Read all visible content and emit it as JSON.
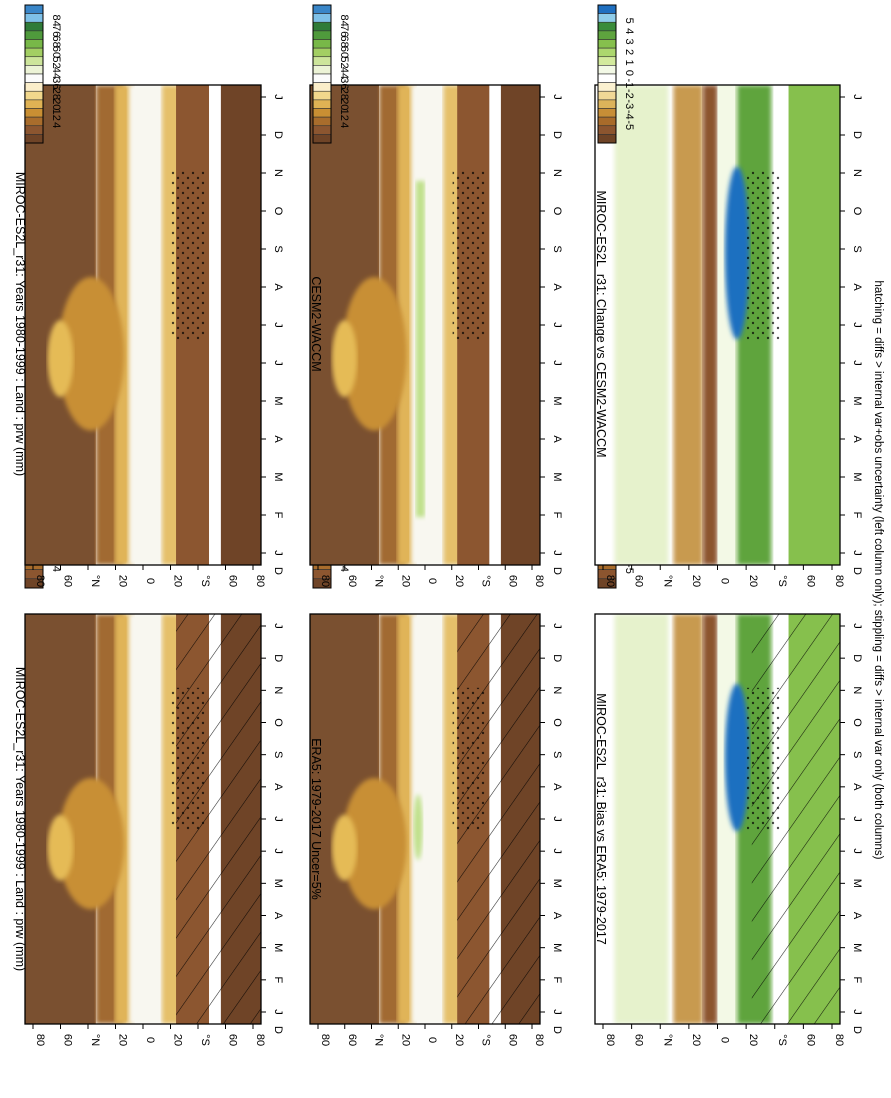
{
  "figure": {
    "footnote": "hatching = diffs > internal var+obs uncertainty (left column only); stippling = diffs > internal var only (both columns)",
    "orientation": "rotated 90° clockwise (page printed landscape)"
  },
  "colors": {
    "abs_scale": [
      "#3a86c8",
      "#7fc1e8",
      "#2f7b38",
      "#4f9a3c",
      "#78b848",
      "#a3cf63",
      "#cde59b",
      "#ecf3d6",
      "#fbfbfb",
      "#fbeeca",
      "#f1d78c",
      "#dfb254",
      "#c98f33",
      "#a96d2c",
      "#8c5630",
      "#6f4427"
    ],
    "diff_scale": [
      "#1f6fc0",
      "#8fcdea",
      "#3a8c3a",
      "#5ea43e",
      "#86c04d",
      "#acd76e",
      "#d3ea9d",
      "#f3f9e6",
      "#ffffff",
      "#fbf1d0",
      "#f0d896",
      "#dcb35a",
      "#c78e36",
      "#a86b2a",
      "#8c552f",
      "#6e4326"
    ]
  },
  "chart_data": [
    {
      "type": "heatmap",
      "panel": "top-left",
      "title": "MIROC-ES2L_r31: Years 1980-1999 : Land : prw (mm)",
      "variable": "prw",
      "units": "mm",
      "x": [
        "J",
        "F",
        "M",
        "A",
        "M",
        "J",
        "J",
        "A",
        "S",
        "O",
        "N",
        "D",
        "J"
      ],
      "xlabel_end": "D",
      "y_ticks": [
        "80",
        "60",
        "°N",
        "20",
        "0",
        "20",
        "°S",
        "60",
        "80"
      ],
      "ylim": [
        -90,
        90
      ],
      "colorbar": [
        "84",
        "76",
        "68",
        "60",
        "52",
        "44",
        "36",
        "28",
        "20",
        "12",
        "4"
      ],
      "overlay": "hatching + stippling",
      "kind": "abs"
    },
    {
      "type": "heatmap",
      "panel": "top-right",
      "title": "MIROC-ES2L_r31: Years 1980-1999 : Land : prw (mm)",
      "variable": "prw",
      "units": "mm",
      "x": [
        "J",
        "F",
        "M",
        "A",
        "M",
        "J",
        "J",
        "A",
        "S",
        "O",
        "N",
        "D",
        "J"
      ],
      "xlabel_end": "D",
      "y_ticks": [
        "80",
        "60",
        "°N",
        "20",
        "0",
        "20",
        "°S",
        "60",
        "80"
      ],
      "ylim": [
        -90,
        90
      ],
      "colorbar": [
        "84",
        "76",
        "68",
        "60",
        "52",
        "44",
        "36",
        "28",
        "20",
        "12",
        "4"
      ],
      "overlay": "stippling",
      "kind": "abs"
    },
    {
      "type": "heatmap",
      "panel": "middle-left",
      "title": "ERA5: 1979-2017 Uncer=5%",
      "x": [
        "J",
        "F",
        "M",
        "A",
        "M",
        "J",
        "J",
        "A",
        "S",
        "O",
        "N",
        "D",
        "J"
      ],
      "xlabel_end": "D",
      "y_ticks": [
        "80",
        "60",
        "°N",
        "20",
        "0",
        "20",
        "°S",
        "60",
        "80"
      ],
      "ylim": [
        -90,
        90
      ],
      "colorbar": [
        "84",
        "76",
        "68",
        "60",
        "52",
        "44",
        "36",
        "28",
        "20",
        "12",
        "4"
      ],
      "overlay": "hatching + stippling",
      "kind": "abs"
    },
    {
      "type": "heatmap",
      "panel": "middle-right",
      "title": "CESM2-WACCM",
      "x": [
        "J",
        "F",
        "M",
        "A",
        "M",
        "J",
        "J",
        "A",
        "S",
        "O",
        "N",
        "D",
        "J"
      ],
      "xlabel_end": "D",
      "y_ticks": [
        "80",
        "60",
        "°N",
        "20",
        "0",
        "20",
        "°S",
        "60",
        "80"
      ],
      "ylim": [
        -90,
        90
      ],
      "colorbar": [
        "84",
        "76",
        "68",
        "60",
        "52",
        "44",
        "36",
        "28",
        "20",
        "12",
        "4"
      ],
      "overlay": "stippling",
      "kind": "abs"
    },
    {
      "type": "heatmap",
      "panel": "bottom-left",
      "title": "MIROC-ES2L_r31: Bias vs ERA5: 1979-2017",
      "x": [
        "J",
        "F",
        "M",
        "A",
        "M",
        "J",
        "J",
        "A",
        "S",
        "O",
        "N",
        "D",
        "J"
      ],
      "xlabel_end": "D",
      "y_ticks": [
        "80",
        "60",
        "°N",
        "20",
        "0",
        "20",
        "°S",
        "60",
        "80"
      ],
      "ylim": [
        -90,
        90
      ],
      "colorbar": [
        "5",
        "4",
        "3",
        "2",
        "1",
        "0",
        "-1",
        "-2",
        "-3",
        "-4",
        "-5"
      ],
      "overlay": "hatching + stippling",
      "kind": "diff"
    },
    {
      "type": "heatmap",
      "panel": "bottom-right",
      "title": "MIROC-ES2L_r31: Change vs CESM2-WACCM",
      "x": [
        "J",
        "F",
        "M",
        "A",
        "M",
        "J",
        "J",
        "A",
        "S",
        "O",
        "N",
        "D",
        "J"
      ],
      "xlabel_end": "D",
      "y_ticks": [
        "80",
        "60",
        "°N",
        "20",
        "0",
        "20",
        "°S",
        "60",
        "80"
      ],
      "ylim": [
        -90,
        90
      ],
      "colorbar": [
        "5",
        "4",
        "3",
        "2",
        "1",
        "0",
        "-1",
        "-2",
        "-3",
        "-4",
        "-5"
      ],
      "overlay": "stippling",
      "kind": "diff"
    }
  ]
}
